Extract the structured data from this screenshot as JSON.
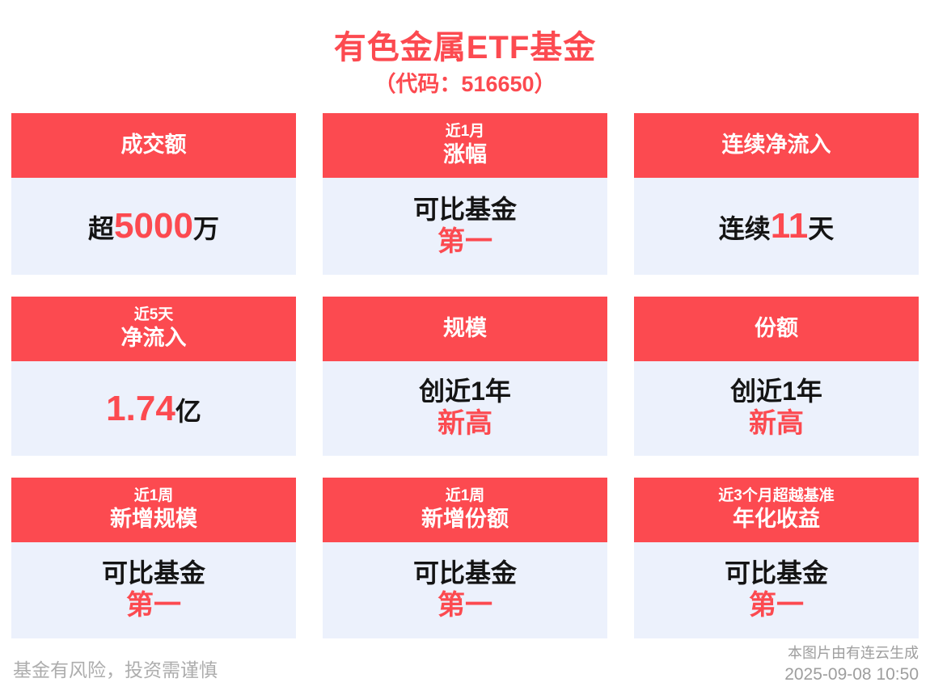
{
  "page": {
    "title": "有色金属ETF基金",
    "subtitle": "（代码：516650）"
  },
  "colors": {
    "accent_red": "#FC4A50",
    "card_body_bg": "#ECF1FC",
    "text_dark": "#141414",
    "footer_gray": "#ADADAD",
    "credit_gray": "#9E9E9E"
  },
  "cards": [
    {
      "id": "turnover",
      "header": {
        "main": "成交额"
      },
      "body": {
        "type": "inline",
        "pre": "超",
        "highlight": "5000",
        "post": "万"
      }
    },
    {
      "id": "one-month-gain",
      "header": {
        "small": "近1月",
        "main": "涨幅"
      },
      "body": {
        "type": "stacked",
        "line1": "可比基金",
        "line2": "第一"
      }
    },
    {
      "id": "consecutive-net-inflow",
      "header": {
        "main": "连续净流入"
      },
      "body": {
        "type": "inline",
        "pre": "连续",
        "highlight": "11",
        "post": "天"
      }
    },
    {
      "id": "five-day-net-inflow",
      "header": {
        "small": "近5天",
        "main": "净流入"
      },
      "body": {
        "type": "inline",
        "pre": "",
        "highlight": "1.74",
        "post": "亿"
      }
    },
    {
      "id": "scale",
      "header": {
        "main": "规模"
      },
      "body": {
        "type": "stacked",
        "line1": "创近1年",
        "line2": "新高"
      }
    },
    {
      "id": "shares",
      "header": {
        "main": "份额"
      },
      "body": {
        "type": "stacked",
        "line1": "创近1年",
        "line2": "新高"
      }
    },
    {
      "id": "one-week-new-scale",
      "header": {
        "small": "近1周",
        "main": "新增规模"
      },
      "body": {
        "type": "stacked",
        "line1": "可比基金",
        "line2": "第一"
      }
    },
    {
      "id": "one-week-new-shares",
      "header": {
        "small": "近1周",
        "main": "新增份额"
      },
      "body": {
        "type": "stacked",
        "line1": "可比基金",
        "line2": "第一"
      }
    },
    {
      "id": "annualized-return-vs-benchmark",
      "header": {
        "small": "近3个月超越基准",
        "main": "年化收益"
      },
      "body": {
        "type": "stacked",
        "line1": "可比基金",
        "line2": "第一"
      }
    }
  ],
  "footer": {
    "disclaimer": "基金有风险，投资需谨慎",
    "credit": "本图片由有连云生成",
    "generated_at": "2025-09-08 10:50"
  }
}
